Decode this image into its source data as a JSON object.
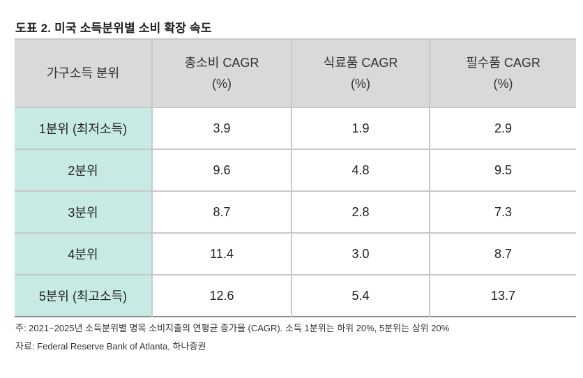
{
  "header": {
    "title": "도표 2. 미국 소득분위별 소비 확장 속도"
  },
  "table": {
    "columns": [
      [
        "가구소득 분위"
      ],
      [
        "총소비 CAGR",
        "(%)"
      ],
      [
        "식료품 CAGR",
        "(%)"
      ],
      [
        "필수품 CAGR",
        "(%)"
      ]
    ],
    "rows": [
      [
        "1분위 (최저소득)",
        "3.9",
        "1.9",
        "2.9"
      ],
      [
        "2분위",
        "9.6",
        "4.8",
        "9.5"
      ],
      [
        "3분위",
        "8.7",
        "2.8",
        "7.3"
      ],
      [
        "4분위",
        "11.4",
        "3.0",
        "8.7"
      ],
      [
        "5분위 (최고소득)",
        "12.6",
        "5.4",
        "13.7"
      ]
    ]
  },
  "notes": [
    "주: 2021~2025년 소득분위별 명목 소비지출의 연평균 증가율 (CAGR). 소득 1분위는 하위 20%, 5분위는 상위 20%",
    "자료: Federal Reserve Bank of Atlanta, 하나증권"
  ]
}
